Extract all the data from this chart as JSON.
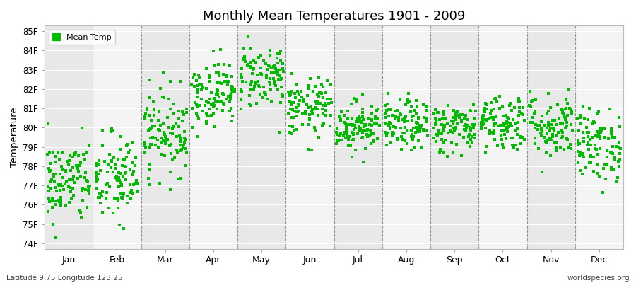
{
  "title": "Monthly Mean Temperatures 1901 - 2009",
  "ylabel": "Temperature",
  "xlabel_labels": [
    "Jan",
    "Feb",
    "Mar",
    "Apr",
    "May",
    "Jun",
    "Jul",
    "Aug",
    "Sep",
    "Oct",
    "Nov",
    "Dec"
  ],
  "ytick_labels": [
    "74F",
    "75F",
    "76F",
    "77F",
    "78F",
    "79F",
    "80F",
    "81F",
    "82F",
    "83F",
    "84F",
    "85F"
  ],
  "ytick_values": [
    74,
    75,
    76,
    77,
    78,
    79,
    80,
    81,
    82,
    83,
    84,
    85
  ],
  "ylim": [
    73.7,
    85.3
  ],
  "legend_label": "Mean Temp",
  "dot_color": "#00bb00",
  "dot_size": 6,
  "background_color": "#ffffff",
  "stripe_colors": [
    "#e8e8e8",
    "#f4f4f4"
  ],
  "footnote_left": "Latitude 9.75 Longitude 123.25",
  "footnote_right": "worldspecies.org",
  "n_years": 109,
  "monthly_means": [
    77.2,
    77.3,
    79.8,
    81.8,
    82.7,
    81.0,
    80.1,
    80.1,
    80.0,
    80.3,
    80.1,
    79.1
  ],
  "monthly_stds": [
    1.1,
    1.2,
    1.1,
    0.85,
    0.85,
    0.75,
    0.65,
    0.65,
    0.65,
    0.75,
    0.85,
    0.95
  ],
  "seed": 42
}
